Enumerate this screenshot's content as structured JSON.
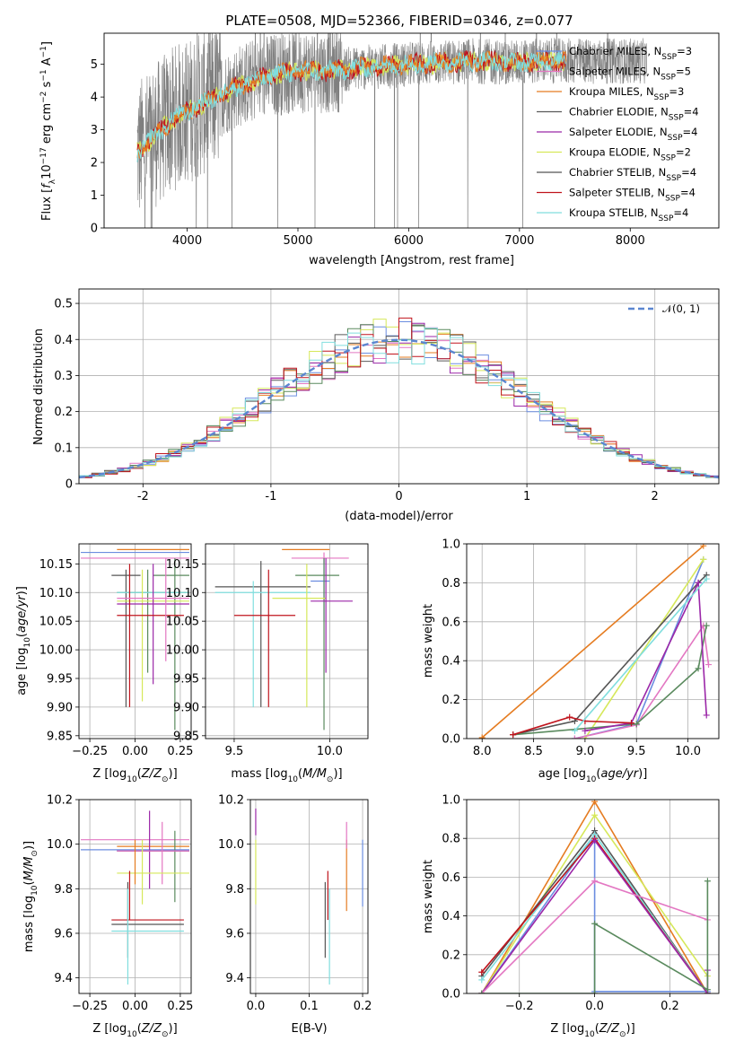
{
  "title": "PLATE=0508, MJD=52366, FIBERID=0346, z=0.077",
  "colors": {
    "Chabrier MILES": "#6b8de0",
    "Salpeter MILES": "#e377c2",
    "Kroupa MILES": "#e57c21",
    "Chabrier ELODIE": "#5a5a5a",
    "Salpeter ELODIE": "#9b27a8",
    "Kroupa ELODIE": "#d6e85a",
    "Chabrier STELIB": "#555555",
    "Salpeter STELIB": "#c0141d",
    "Kroupa STELIB": "#80dede",
    "data": "#7f7f7f",
    "extra_green": "#5a8a5e",
    "gauss": "#5b86d0"
  },
  "legend_entries": [
    "Chabrier MILES, N$_{SSP}$=3",
    "Salpeter MILES, N$_{SSP}$=5",
    "Kroupa MILES, N$_{SSP}$=3",
    "Chabrier ELODIE, N$_{SSP}$=4",
    "Salpeter ELODIE, N$_{SSP}$=4",
    "Kroupa ELODIE, N$_{SSP}$=2",
    "Chabrier STELIB, N$_{SSP}$=4",
    "Salpeter STELIB, N$_{SSP}$=4",
    "Kroupa STELIB, N$_{SSP}$=4"
  ],
  "chart_data": [
    {
      "id": "spectrum",
      "type": "line",
      "xlabel": "wavelength [Angstrom, rest frame]",
      "ylabel": "Flux [f_λ10^-17 erg cm^-2 s^-1 A^-1]",
      "xlim": [
        3250,
        8800
      ],
      "ylim": [
        0,
        5.95
      ],
      "xticks": [
        4000,
        5000,
        6000,
        7000,
        8000
      ],
      "yticks": [
        0,
        1,
        2,
        3,
        4,
        5
      ],
      "model_continuum": {
        "x": [
          3550,
          3700,
          3900,
          4200,
          4500,
          4800,
          5000,
          5300,
          5600,
          6000,
          6300,
          6600,
          6900,
          7200,
          7400
        ],
        "y": [
          2.3,
          2.8,
          3.4,
          3.9,
          4.4,
          4.7,
          4.8,
          4.8,
          4.9,
          5.0,
          5.05,
          5.1,
          5.05,
          5.1,
          5.1
        ]
      }
    },
    {
      "id": "residuals",
      "type": "step",
      "xlabel": "(data-model)/error",
      "ylabel": "Normed distribution",
      "xlim": [
        -2.5,
        2.5
      ],
      "ylim": [
        0,
        0.54
      ],
      "xticks": [
        -2,
        -1,
        0,
        1,
        2
      ],
      "yticks": [
        0.0,
        0.1,
        0.2,
        0.3,
        0.4,
        0.5
      ],
      "legend": "𝒩(0, 1)",
      "gaussian": {
        "mean": 0,
        "sigma": 1
      }
    },
    {
      "id": "age-vs-Z",
      "type": "errorbar",
      "xlabel": "Z [log10(Z/Z⊙)]",
      "ylabel": "age  [log10(age/yr)]",
      "xlim": [
        -0.31,
        0.31
      ],
      "ylim": [
        9.845,
        10.185
      ],
      "xticks": [
        -0.25,
        0,
        0.25
      ],
      "xticklabels": [
        "−0.25",
        "0.00",
        "0.25"
      ],
      "yticks": [
        9.85,
        9.9,
        9.95,
        10.0,
        10.05,
        10.1,
        10.15
      ],
      "yticklabels": [
        "9.85",
        "9.90",
        "9.95",
        "10.00",
        "10.05",
        "10.10",
        "10.15"
      ],
      "points": [
        {
          "c": "#6b8de0",
          "x": 0.0,
          "y": 10.17,
          "xe": [
            -0.3,
            0.3
          ],
          "ye": [
            10.17,
            10.17
          ]
        },
        {
          "c": "#e377c2",
          "x": 0.0,
          "y": 10.16,
          "xe": [
            -0.3,
            0.3
          ],
          "ye": [
            10.16,
            10.16
          ]
        },
        {
          "c": "#e57c21",
          "x": 0.0,
          "y": 10.175,
          "xe": [
            -0.1,
            0.3
          ],
          "ye": [
            10.175,
            10.175
          ]
        },
        {
          "c": "#555555",
          "x": -0.05,
          "y": 10.13,
          "xe": [
            -0.13,
            0.03
          ],
          "ye": [
            9.9,
            10.14
          ]
        },
        {
          "c": "#5a8a5e",
          "x": 0.22,
          "y": 10.13,
          "xe": [
            0.1,
            0.3
          ],
          "ye": [
            9.86,
            10.16
          ]
        },
        {
          "c": "#5a8a5e",
          "x": 0.07,
          "y": 10.1,
          "xe": [
            -0.1,
            0.3
          ],
          "ye": [
            9.96,
            10.14
          ]
        },
        {
          "c": "#80dede",
          "x": 0.0,
          "y": 10.1,
          "xe": [
            -0.1,
            0.3
          ],
          "ye": [
            10.1,
            10.1
          ]
        },
        {
          "c": "#d6e85a",
          "x": 0.04,
          "y": 10.085,
          "xe": [
            -0.1,
            0.3
          ],
          "ye": [
            9.91,
            10.14
          ]
        },
        {
          "c": "#9b27a8",
          "x": 0.1,
          "y": 10.08,
          "xe": [
            -0.1,
            0.3
          ],
          "ye": [
            9.94,
            10.15
          ]
        },
        {
          "c": "#c0141d",
          "x": -0.03,
          "y": 10.06,
          "xe": [
            -0.1,
            0.27
          ],
          "ye": [
            9.9,
            10.15
          ]
        },
        {
          "c": "#e377c2",
          "x": 0.17,
          "y": 10.09,
          "xe": [
            -0.1,
            0.3
          ],
          "ye": [
            9.98,
            10.16
          ]
        }
      ]
    },
    {
      "id": "age-vs-mass",
      "type": "errorbar",
      "xlabel": "mass [log10(M/M⊙)]",
      "ylabel": "",
      "xlim": [
        9.35,
        10.2
      ],
      "ylim": [
        9.845,
        10.185
      ],
      "xticks": [
        9.5,
        10.0
      ],
      "xticklabels": [
        "9.5",
        "10.0"
      ],
      "yticks": [
        9.85,
        9.9,
        9.95,
        10.0,
        10.05,
        10.1,
        10.15
      ],
      "yticklabels": [
        "9.85",
        "9.90",
        "9.95",
        "10.00",
        "10.05",
        "10.10",
        "10.15"
      ],
      "points": [
        {
          "c": "#e57c21",
          "x": 9.97,
          "y": 10.175,
          "xe": [
            9.75,
            10.0
          ],
          "ye": [
            10.175,
            10.175
          ]
        },
        {
          "c": "#e377c2",
          "x": 9.97,
          "y": 10.16,
          "xe": [
            9.8,
            10.1
          ],
          "ye": [
            10.15,
            10.17
          ]
        },
        {
          "c": "#6b8de0",
          "x": 9.97,
          "y": 10.12,
          "xe": [
            9.9,
            10.0
          ],
          "ye": [
            10.05,
            10.16
          ]
        },
        {
          "c": "#5a8a5e",
          "x": 9.97,
          "y": 10.13,
          "xe": [
            9.82,
            10.05
          ],
          "ye": [
            9.86,
            10.16
          ]
        },
        {
          "c": "#555555",
          "x": 9.64,
          "y": 10.11,
          "xe": [
            9.4,
            9.9
          ],
          "ye": [
            9.9,
            10.155
          ]
        },
        {
          "c": "#80dede",
          "x": 9.6,
          "y": 10.1,
          "xe": [
            9.4,
            9.9
          ],
          "ye": [
            9.9,
            10.12
          ]
        },
        {
          "c": "#d6e85a",
          "x": 9.88,
          "y": 10.09,
          "xe": [
            9.7,
            9.98
          ],
          "ye": [
            9.9,
            10.15
          ]
        },
        {
          "c": "#9b27a8",
          "x": 9.98,
          "y": 10.085,
          "xe": [
            9.9,
            10.12
          ],
          "ye": [
            9.96,
            10.16
          ]
        },
        {
          "c": "#c0141d",
          "x": 9.68,
          "y": 10.06,
          "xe": [
            9.5,
            9.82
          ],
          "ye": [
            9.9,
            10.14
          ]
        }
      ]
    },
    {
      "id": "weight-vs-age",
      "type": "line",
      "xlabel": "age  [log10(age/yr)]",
      "ylabel": "mass weight",
      "xlim": [
        7.85,
        10.3
      ],
      "ylim": [
        0,
        1.0
      ],
      "xticks": [
        8.0,
        8.5,
        9.0,
        9.5,
        10.0
      ],
      "xticklabels": [
        "8.0",
        "8.5",
        "9.0",
        "9.5",
        "10.0"
      ],
      "yticks": [
        0.0,
        0.2,
        0.4,
        0.6,
        0.8,
        1.0
      ],
      "yticklabels": [
        "0.0",
        "0.2",
        "0.4",
        "0.6",
        "0.8",
        "1.0"
      ],
      "series": [
        {
          "c": "#e57c21",
          "x": [
            8.0,
            10.15
          ],
          "y": [
            0.005,
            0.99
          ]
        },
        {
          "c": "#6b8de0",
          "x": [
            8.9,
            9.5,
            10.15
          ],
          "y": [
            0.0,
            0.075,
            0.92
          ]
        },
        {
          "c": "#d6e85a",
          "x": [
            9.0,
            10.15
          ],
          "y": [
            0.0,
            0.92
          ]
        },
        {
          "c": "#e377c2",
          "x": [
            8.9,
            9.5,
            10.15,
            10.2
          ],
          "y": [
            0.0,
            0.07,
            0.58,
            0.38
          ]
        },
        {
          "c": "#555555",
          "x": [
            8.3,
            8.9,
            10.1,
            10.18
          ],
          "y": [
            0.02,
            0.09,
            0.8,
            0.84
          ]
        },
        {
          "c": "#5a8a5e",
          "x": [
            8.3,
            9.5,
            10.1,
            10.18
          ],
          "y": [
            0.02,
            0.075,
            0.36,
            0.58
          ]
        },
        {
          "c": "#9b27a8",
          "x": [
            9.0,
            9.45,
            10.1,
            10.18
          ],
          "y": [
            0.04,
            0.08,
            0.8,
            0.12
          ]
        },
        {
          "c": "#c0141d",
          "x": [
            8.3,
            8.85,
            9.0,
            9.45
          ],
          "y": [
            0.02,
            0.11,
            0.09,
            0.08
          ]
        },
        {
          "c": "#80dede",
          "x": [
            8.9,
            10.18
          ],
          "y": [
            0.04,
            0.82
          ]
        }
      ]
    },
    {
      "id": "mass-vs-Z",
      "type": "errorbar",
      "xlabel": "Z [log10(Z/Z⊙)]",
      "ylabel": "mass [log10(M/M⊙)]",
      "xlim": [
        -0.31,
        0.31
      ],
      "ylim": [
        9.33,
        10.2
      ],
      "xticks": [
        -0.25,
        0,
        0.25
      ],
      "xticklabels": [
        "−0.25",
        "0.00",
        "0.25"
      ],
      "yticks": [
        9.4,
        9.6,
        9.8,
        10.0,
        10.2
      ],
      "yticklabels": [
        "9.4",
        "9.6",
        "9.8",
        "10.0",
        "10.2"
      ],
      "points": [
        {
          "c": "#e377c2",
          "x": 0.0,
          "y": 10.02,
          "xe": [
            -0.3,
            0.3
          ],
          "ye": [
            10.02,
            10.02
          ]
        },
        {
          "c": "#6b8de0",
          "x": 0.0,
          "y": 9.975,
          "xe": [
            -0.3,
            0.3
          ],
          "ye": [
            9.975,
            9.975
          ]
        },
        {
          "c": "#e57c21",
          "x": 0.0,
          "y": 9.99,
          "xe": [
            -0.1,
            0.3
          ],
          "ye": [
            9.99,
            9.99
          ]
        },
        {
          "c": "#5a8a5e",
          "x": 0.22,
          "y": 9.97,
          "xe": [
            -0.1,
            0.3
          ],
          "ye": [
            9.74,
            10.06
          ]
        },
        {
          "c": "#9b27a8",
          "x": 0.08,
          "y": 9.97,
          "xe": [
            -0.1,
            0.3
          ],
          "ye": [
            9.8,
            10.15
          ]
        },
        {
          "c": "#e377c2",
          "x": 0.15,
          "y": 9.97,
          "xe": [
            -0.1,
            0.3
          ],
          "ye": [
            9.82,
            10.1
          ]
        },
        {
          "c": "#d6e85a",
          "x": 0.04,
          "y": 9.87,
          "xe": [
            -0.1,
            0.3
          ],
          "ye": [
            9.73,
            10.02
          ]
        },
        {
          "c": "#c0141d",
          "x": -0.03,
          "y": 9.66,
          "xe": [
            -0.13,
            0.27
          ],
          "ye": [
            9.66,
            9.88
          ]
        },
        {
          "c": "#555555",
          "x": -0.04,
          "y": 9.64,
          "xe": [
            -0.13,
            0.27
          ],
          "ye": [
            9.49,
            9.83
          ]
        },
        {
          "c": "#80dede",
          "x": -0.04,
          "y": 9.61,
          "xe": [
            -0.13,
            0.27
          ],
          "ye": [
            9.37,
            9.8
          ]
        },
        {
          "c": "#e57c21",
          "x": 0.0,
          "y": 9.98,
          "xe": [
            0.0,
            0.0
          ],
          "ye": [
            9.82,
            10.02
          ]
        }
      ]
    },
    {
      "id": "mass-vs-EBV",
      "type": "errorbar",
      "xlabel": "E(B-V)",
      "ylabel": "",
      "xlim": [
        -0.01,
        0.21
      ],
      "ylim": [
        9.33,
        10.2
      ],
      "xticks": [
        0.0,
        0.1,
        0.2
      ],
      "xticklabels": [
        "0.0",
        "0.1",
        "0.2"
      ],
      "yticks": [
        9.4,
        9.6,
        9.8,
        10.0,
        10.2
      ],
      "yticklabels": [
        "9.4",
        "9.6",
        "9.8",
        "10.0",
        "10.2"
      ],
      "points": [
        {
          "c": "#9b27a8",
          "x": 0.0,
          "y": 10.1,
          "xe": [
            0.0,
            0.0
          ],
          "ye": [
            10.04,
            10.16
          ]
        },
        {
          "c": "#d6e85a",
          "x": 0.0,
          "y": 9.87,
          "xe": [
            0.0,
            0.0
          ],
          "ye": [
            9.73,
            10.02
          ]
        },
        {
          "c": "#555555",
          "x": 0.13,
          "y": 9.64,
          "xe": [
            0.13,
            0.13
          ],
          "ye": [
            9.49,
            9.83
          ]
        },
        {
          "c": "#c0141d",
          "x": 0.135,
          "y": 9.8,
          "xe": [
            0.135,
            0.135
          ],
          "ye": [
            9.66,
            9.88
          ]
        },
        {
          "c": "#80dede",
          "x": 0.138,
          "y": 9.6,
          "xe": [
            0.138,
            0.138
          ],
          "ye": [
            9.37,
            9.8
          ]
        },
        {
          "c": "#e57c21",
          "x": 0.17,
          "y": 9.85,
          "xe": [
            0.17,
            0.17
          ],
          "ye": [
            9.7,
            10.02
          ]
        },
        {
          "c": "#e377c2",
          "x": 0.17,
          "y": 10.02,
          "xe": [
            0.17,
            0.17
          ],
          "ye": [
            9.98,
            10.1
          ]
        },
        {
          "c": "#6b8de0",
          "x": 0.2,
          "y": 9.87,
          "xe": [
            0.2,
            0.2
          ],
          "ye": [
            9.72,
            10.02
          ]
        }
      ]
    },
    {
      "id": "weight-vs-Z",
      "type": "line",
      "xlabel": "Z [log10(Z/Z⊙)]",
      "ylabel": "mass weight",
      "xlim": [
        -0.34,
        0.33
      ],
      "ylim": [
        0,
        1.0
      ],
      "xticks": [
        -0.2,
        0.0,
        0.2
      ],
      "xticklabels": [
        "−0.2",
        "0.0",
        "0.2"
      ],
      "yticks": [
        0.0,
        0.2,
        0.4,
        0.6,
        0.8,
        1.0
      ],
      "yticklabels": [
        "0.0",
        "0.2",
        "0.4",
        "0.6",
        "0.8",
        "1.0"
      ],
      "series": [
        {
          "c": "#e57c21",
          "x": [
            -0.3,
            0.0,
            0.3
          ],
          "y": [
            0.0,
            0.99,
            0.0
          ]
        },
        {
          "c": "#d6e85a",
          "x": [
            -0.3,
            0.0,
            0.3
          ],
          "y": [
            0.0,
            0.92,
            0.09
          ]
        },
        {
          "c": "#6b8de0",
          "x": [
            -0.3,
            0.0,
            0.0,
            0.3
          ],
          "y": [
            0.0,
            0.82,
            0.01,
            0.01
          ]
        },
        {
          "c": "#555555",
          "x": [
            -0.3,
            0.0,
            0.3
          ],
          "y": [
            0.09,
            0.84,
            0.0
          ]
        },
        {
          "c": "#80dede",
          "x": [
            -0.3,
            0.0,
            0.3
          ],
          "y": [
            0.07,
            0.82,
            0.0
          ]
        },
        {
          "c": "#c0141d",
          "x": [
            -0.3,
            0.0,
            0.3
          ],
          "y": [
            0.11,
            0.8,
            0.0
          ]
        },
        {
          "c": "#9b27a8",
          "x": [
            -0.3,
            0.0,
            0.3,
            0.3
          ],
          "y": [
            0.0,
            0.79,
            0.0,
            0.12
          ]
        },
        {
          "c": "#e377c2",
          "x": [
            -0.3,
            0.0,
            0.3
          ],
          "y": [
            0.0,
            0.58,
            0.38
          ]
        },
        {
          "c": "#5a8a5e",
          "x": [
            -0.3,
            0.0,
            0.0,
            0.3,
            0.3
          ],
          "y": [
            0.0,
            0.0,
            0.36,
            0.02,
            0.58
          ]
        }
      ]
    }
  ]
}
